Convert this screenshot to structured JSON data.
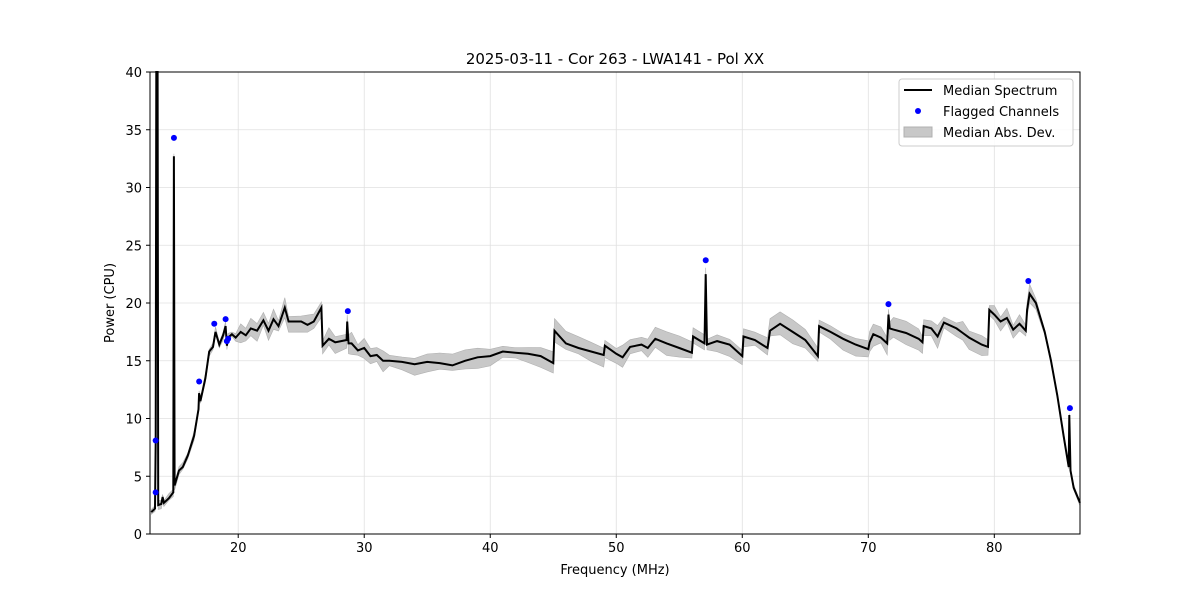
{
  "chart_data": {
    "type": "line",
    "title": "2025-03-11 - Cor 263 - LWA141 - Pol XX",
    "xlabel": "Frequency (MHz)",
    "ylabel": "Power (CPU)",
    "xlim": [
      13.0,
      86.8
    ],
    "ylim": [
      0,
      40
    ],
    "xticks": [
      20,
      30,
      40,
      50,
      60,
      70,
      80
    ],
    "yticks": [
      0,
      5,
      10,
      15,
      20,
      25,
      30,
      35,
      40
    ],
    "grid": true,
    "legend": {
      "placement": "top-right",
      "entries": [
        "Median Spectrum",
        "Flagged Channels",
        "Median Abs. Dev."
      ]
    },
    "colors": {
      "median": "#000000",
      "flagged": "#0000ff",
      "mad": "#c8c8c8"
    },
    "median_spectrum": [
      [
        13.1,
        1.9
      ],
      [
        13.4,
        2.2
      ],
      [
        13.45,
        8
      ],
      [
        13.5,
        40
      ],
      [
        13.6,
        40
      ],
      [
        13.65,
        2.5
      ],
      [
        13.9,
        2.6
      ],
      [
        14.0,
        3.2
      ],
      [
        14.1,
        2.7
      ],
      [
        14.5,
        3.1
      ],
      [
        14.85,
        3.6
      ],
      [
        14.9,
        32.7
      ],
      [
        14.95,
        4.2
      ],
      [
        15.3,
        5.5
      ],
      [
        15.6,
        5.8
      ],
      [
        16,
        6.8
      ],
      [
        16.5,
        8.5
      ],
      [
        16.85,
        10.8
      ],
      [
        16.9,
        12.2
      ],
      [
        17.0,
        11.5
      ],
      [
        17.4,
        13.5
      ],
      [
        17.7,
        15.8
      ],
      [
        18.0,
        16.2
      ],
      [
        18.2,
        17.5
      ],
      [
        18.5,
        16.4
      ],
      [
        18.8,
        17.2
      ],
      [
        19.0,
        18
      ],
      [
        19.1,
        16.3
      ],
      [
        19.2,
        17
      ],
      [
        19.5,
        17.3
      ],
      [
        19.8,
        17.0
      ],
      [
        20.2,
        17.5
      ],
      [
        20.6,
        17.2
      ],
      [
        21,
        17.8
      ],
      [
        21.5,
        17.6
      ],
      [
        22,
        18.5
      ],
      [
        22.4,
        17.6
      ],
      [
        22.8,
        18.6
      ],
      [
        23.2,
        18.0
      ],
      [
        23.7,
        19.6
      ],
      [
        24,
        18.4
      ],
      [
        25,
        18.4
      ],
      [
        25.5,
        18.1
      ],
      [
        26,
        18.4
      ],
      [
        26.6,
        19.6
      ],
      [
        26.7,
        16.3
      ],
      [
        27.2,
        16.9
      ],
      [
        27.7,
        16.6
      ],
      [
        28.6,
        16.8
      ],
      [
        28.65,
        18.4
      ],
      [
        28.75,
        16.5
      ],
      [
        29,
        16.5
      ],
      [
        29.5,
        15.9
      ],
      [
        30,
        16.1
      ],
      [
        30.5,
        15.4
      ],
      [
        31.0,
        15.5
      ],
      [
        31.5,
        15.0
      ],
      [
        32,
        15.0
      ],
      [
        33,
        14.9
      ],
      [
        34,
        14.7
      ],
      [
        35,
        14.9
      ],
      [
        36,
        14.8
      ],
      [
        37,
        14.6
      ],
      [
        38,
        15.0
      ],
      [
        39,
        15.3
      ],
      [
        40,
        15.4
      ],
      [
        41,
        15.8
      ],
      [
        42,
        15.7
      ],
      [
        43,
        15.6
      ],
      [
        44,
        15.4
      ],
      [
        45,
        14.8
      ],
      [
        45.1,
        17.6
      ],
      [
        46,
        16.5
      ],
      [
        47,
        16.1
      ],
      [
        48,
        15.8
      ],
      [
        49,
        15.5
      ],
      [
        49.1,
        16.3
      ],
      [
        50,
        15.6
      ],
      [
        50.5,
        15.3
      ],
      [
        51.1,
        16.2
      ],
      [
        52,
        16.4
      ],
      [
        52.5,
        16.1
      ],
      [
        53.1,
        16.9
      ],
      [
        54,
        16.5
      ],
      [
        55,
        16.1
      ],
      [
        56,
        15.7
      ],
      [
        56.1,
        17.1
      ],
      [
        57,
        16.5
      ],
      [
        57.1,
        22.5
      ],
      [
        57.2,
        16.4
      ],
      [
        58,
        16.7
      ],
      [
        59,
        16.4
      ],
      [
        60,
        15.4
      ],
      [
        60.1,
        17.1
      ],
      [
        61,
        16.8
      ],
      [
        62,
        16.1
      ],
      [
        62.2,
        17.6
      ],
      [
        63,
        18.2
      ],
      [
        64,
        17.5
      ],
      [
        65,
        16.8
      ],
      [
        66,
        15.4
      ],
      [
        66.1,
        18.0
      ],
      [
        67,
        17.5
      ],
      [
        68,
        16.9
      ],
      [
        69,
        16.4
      ],
      [
        70,
        16.0
      ],
      [
        70.1,
        16.6
      ],
      [
        70.4,
        17.3
      ],
      [
        71,
        17.0
      ],
      [
        71.5,
        16.5
      ],
      [
        71.6,
        19.0
      ],
      [
        71.7,
        17.8
      ],
      [
        72,
        17.7
      ],
      [
        73,
        17.4
      ],
      [
        74,
        16.9
      ],
      [
        74.3,
        16.6
      ],
      [
        74.4,
        18.0
      ],
      [
        75,
        17.8
      ],
      [
        75.5,
        17.1
      ],
      [
        76,
        18.3
      ],
      [
        77,
        17.8
      ],
      [
        77.5,
        17.4
      ],
      [
        78,
        17.0
      ],
      [
        79,
        16.4
      ],
      [
        79.5,
        16.2
      ],
      [
        79.6,
        19.4
      ],
      [
        80,
        19.0
      ],
      [
        80.5,
        18.4
      ],
      [
        81,
        18.7
      ],
      [
        81.5,
        17.7
      ],
      [
        82,
        18.2
      ],
      [
        82.5,
        17.6
      ],
      [
        82.6,
        19.4
      ],
      [
        82.8,
        20.8
      ],
      [
        83.3,
        20.0
      ],
      [
        84,
        17.5
      ],
      [
        84.5,
        15.0
      ],
      [
        85,
        12.0
      ],
      [
        85.5,
        8.5
      ],
      [
        85.9,
        5.8
      ],
      [
        85.95,
        10.3
      ],
      [
        86.05,
        5.5
      ],
      [
        86.3,
        4.0
      ],
      [
        86.8,
        2.7
      ]
    ],
    "mad_segments": [
      [
        13,
        20,
        0.3
      ],
      [
        20,
        26.7,
        0.7
      ],
      [
        26.7,
        45,
        0.7
      ],
      [
        45,
        79.6,
        0.75
      ],
      [
        79.6,
        84,
        0.6
      ],
      [
        84,
        87,
        0.2
      ]
    ],
    "flagged_channels": [
      [
        13.45,
        3.6
      ],
      [
        13.45,
        8.1
      ],
      [
        14.9,
        34.3
      ],
      [
        16.9,
        13.2
      ],
      [
        18.1,
        18.2
      ],
      [
        19.0,
        18.6
      ],
      [
        19.1,
        16.7
      ],
      [
        19.2,
        16.9
      ],
      [
        28.7,
        19.3
      ],
      [
        57.1,
        23.7
      ],
      [
        71.6,
        19.9
      ],
      [
        82.7,
        21.9
      ],
      [
        86.0,
        10.9
      ]
    ]
  }
}
